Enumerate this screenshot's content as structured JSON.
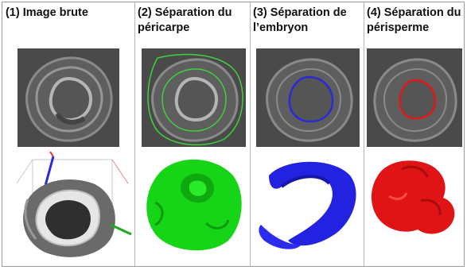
{
  "panels": [
    {
      "title": "(1) Image brute"
    },
    {
      "title": "(2) Séparation du péricarpe",
      "outline_color": "#3fd13f",
      "render_color": "#16d416"
    },
    {
      "title": "(3) Séparation de l’embryon",
      "outline_color": "#2a2ad8",
      "render_color": "#2222e0"
    },
    {
      "title": "(4) Séparation du périsperme",
      "outline_color": "#e01818",
      "render_color": "#e01414"
    }
  ]
}
